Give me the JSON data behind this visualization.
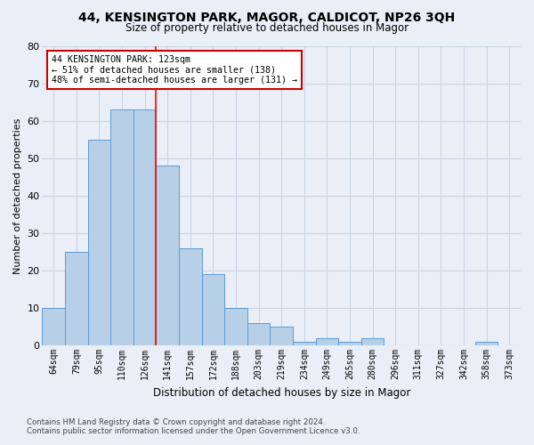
{
  "title": "44, KENSINGTON PARK, MAGOR, CALDICOT, NP26 3QH",
  "subtitle": "Size of property relative to detached houses in Magor",
  "xlabel": "Distribution of detached houses by size in Magor",
  "ylabel": "Number of detached properties",
  "categories": [
    "64sqm",
    "79sqm",
    "95sqm",
    "110sqm",
    "126sqm",
    "141sqm",
    "157sqm",
    "172sqm",
    "188sqm",
    "203sqm",
    "219sqm",
    "234sqm",
    "249sqm",
    "265sqm",
    "280sqm",
    "296sqm",
    "311sqm",
    "327sqm",
    "342sqm",
    "358sqm",
    "373sqm"
  ],
  "values": [
    10,
    25,
    55,
    63,
    63,
    48,
    26,
    19,
    10,
    6,
    5,
    1,
    2,
    1,
    2,
    0,
    0,
    0,
    0,
    1,
    0
  ],
  "bar_color": "#b8cfe8",
  "bar_edge_color": "#5b9bd5",
  "grid_color": "#c8d4e4",
  "background_color": "#eaeff7",
  "red_line_index": 4,
  "annotation_line1": "44 KENSINGTON PARK: 123sqm",
  "annotation_line2": "← 51% of detached houses are smaller (138)",
  "annotation_line3": "48% of semi-detached houses are larger (131) →",
  "annotation_box_color": "#ffffff",
  "annotation_box_edge_color": "#cc0000",
  "ylim": [
    0,
    80
  ],
  "yticks": [
    0,
    10,
    20,
    30,
    40,
    50,
    60,
    70,
    80
  ],
  "footer_line1": "Contains HM Land Registry data © Crown copyright and database right 2024.",
  "footer_line2": "Contains public sector information licensed under the Open Government Licence v3.0."
}
